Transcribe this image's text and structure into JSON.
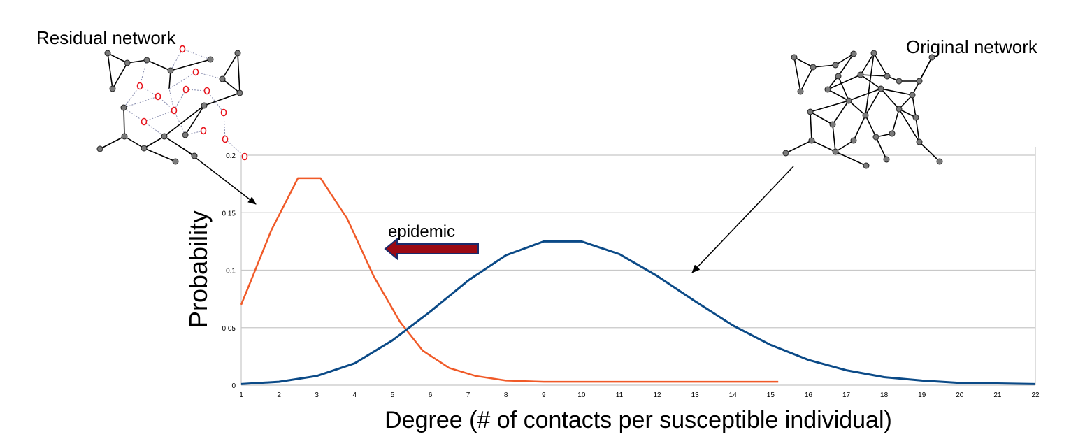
{
  "chart_data": {
    "type": "line",
    "ylabel": "Probability",
    "xlabel": "Degree (# of contacts per susceptible individual)",
    "xlim": [
      1,
      22
    ],
    "ylim": [
      0,
      0.2
    ],
    "x_ticks": [
      "1",
      "2",
      "3",
      "4",
      "5",
      "6",
      "7",
      "8",
      "9",
      "10",
      "11",
      "12",
      "13",
      "14",
      "15",
      "16",
      "17",
      "18",
      "19",
      "20",
      "21",
      "22"
    ],
    "y_ticks": [
      "0",
      "0.05",
      "0.1",
      "0.15",
      "0.2"
    ],
    "grid": "horizontal",
    "series": [
      {
        "color": "#f05a28",
        "x": [
          1,
          1.8,
          2.5,
          3.1,
          3.8,
          4.5,
          5.2,
          5.8,
          6.5,
          7.2,
          8,
          9,
          10,
          11,
          12,
          13,
          14,
          15.2
        ],
        "y": [
          0.07,
          0.135,
          0.18,
          0.18,
          0.145,
          0.095,
          0.055,
          0.03,
          0.015,
          0.008,
          0.004,
          0.003,
          0.003,
          0.003,
          0.003,
          0.003,
          0.003,
          0.003
        ]
      },
      {
        "color": "#0b4a87",
        "x": [
          1,
          2,
          3,
          4,
          5,
          6,
          7,
          8,
          9,
          10,
          11,
          12,
          13,
          14,
          15,
          16,
          17,
          18,
          19,
          20,
          21,
          22
        ],
        "y": [
          0.001,
          0.003,
          0.008,
          0.019,
          0.039,
          0.064,
          0.091,
          0.113,
          0.125,
          0.125,
          0.114,
          0.095,
          0.073,
          0.052,
          0.035,
          0.022,
          0.013,
          0.007,
          0.004,
          0.002,
          0.0015,
          0.001
        ]
      }
    ],
    "annotations": {
      "epidemic": "epidemic",
      "residual": "Residual network",
      "original": "Original network"
    },
    "colors": {
      "arrow_fill": "#9b0a14",
      "arrow_outline": "#1a2b6b"
    }
  }
}
